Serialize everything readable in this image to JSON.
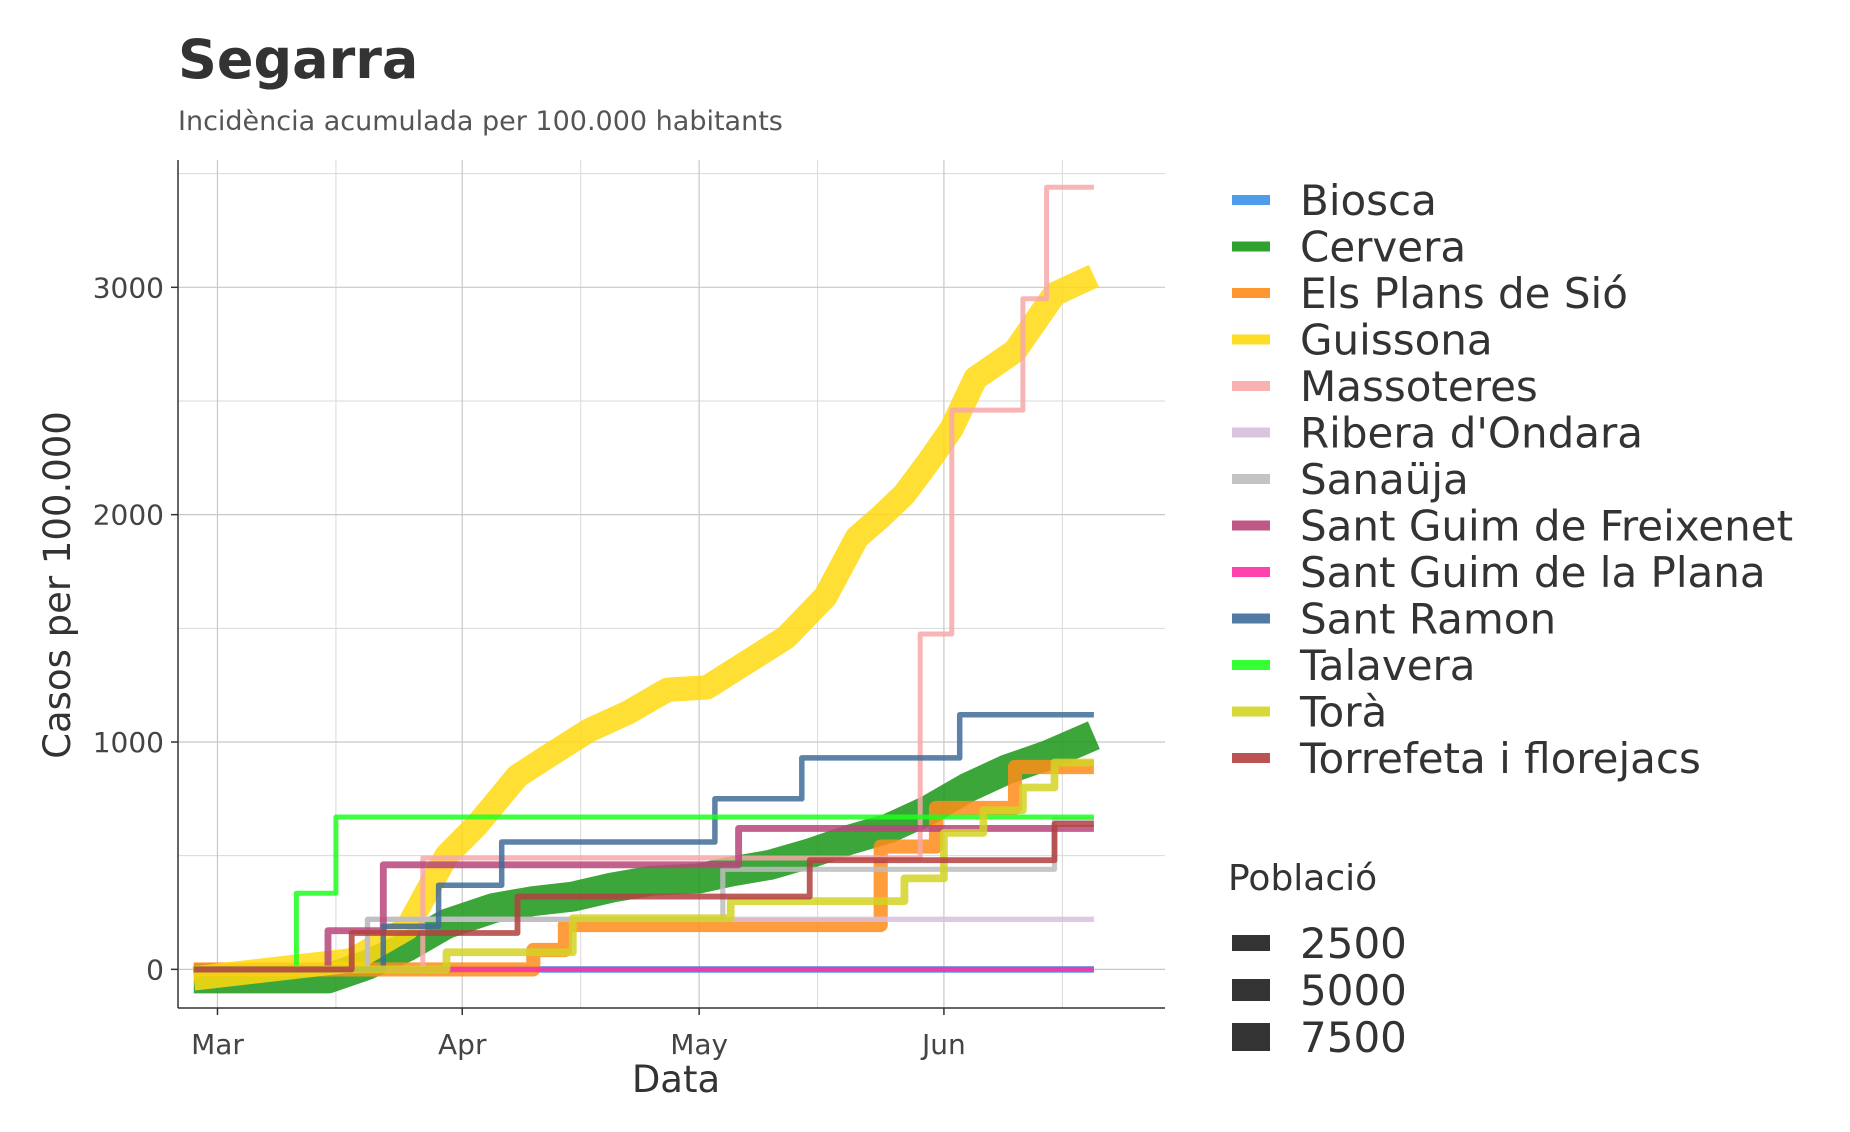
{
  "chart_data": {
    "type": "line",
    "title": "Segarra",
    "subtitle": "Incidència acumulada per 100.000 habitants",
    "xlabel": "Data",
    "ylabel": "Casos per 100.000",
    "x_ticks": [
      "Mar",
      "Apr",
      "May",
      "Jun"
    ],
    "y_ticks": [
      0,
      1000,
      2000,
      3000
    ],
    "xlim": [
      "2020-02-25",
      "2020-06-29"
    ],
    "ylim": [
      -170,
      3560
    ],
    "grid": true,
    "legend_position": "right",
    "size_legend": {
      "title": "Població",
      "values": [
        2500,
        5000,
        7500
      ]
    },
    "series": [
      {
        "name": "Biosca",
        "color": "#3c91e6",
        "population": 900,
        "x": [
          "2020-02-27",
          "2020-06-20"
        ],
        "y": [
          0,
          0
        ]
      },
      {
        "name": "Cervera",
        "color": "#1a9617",
        "population": 9300,
        "x": [
          "2020-02-27",
          "2020-03-15",
          "2020-03-20",
          "2020-03-25",
          "2020-03-30",
          "2020-04-05",
          "2020-04-10",
          "2020-04-15",
          "2020-04-20",
          "2020-04-25",
          "2020-05-01",
          "2020-05-05",
          "2020-05-10",
          "2020-05-15",
          "2020-05-20",
          "2020-05-25",
          "2020-05-30",
          "2020-06-04",
          "2020-06-09",
          "2020-06-14",
          "2020-06-20"
        ],
        "y": [
          -40,
          -40,
          20,
          100,
          200,
          270,
          300,
          320,
          360,
          390,
          400,
          430,
          460,
          510,
          570,
          620,
          700,
          800,
          880,
          940,
          1030
        ]
      },
      {
        "name": "Els Plans de Sió",
        "color": "#ff8c1a",
        "population": 3500,
        "x": [
          "2020-02-27",
          "2020-04-10",
          "2020-04-10",
          "2020-04-14",
          "2020-04-14",
          "2020-05-24",
          "2020-05-24",
          "2020-05-31",
          "2020-05-31",
          "2020-06-10",
          "2020-06-10",
          "2020-06-20"
        ],
        "y": [
          0,
          0,
          85,
          85,
          195,
          195,
          540,
          540,
          710,
          710,
          890,
          890
        ]
      },
      {
        "name": "Guissona",
        "color": "#ffd90f",
        "population": 7000,
        "x": [
          "2020-02-27",
          "2020-03-18",
          "2020-03-25",
          "2020-03-30",
          "2020-04-03",
          "2020-04-08",
          "2020-04-12",
          "2020-04-17",
          "2020-04-22",
          "2020-04-27",
          "2020-05-02",
          "2020-05-07",
          "2020-05-12",
          "2020-05-17",
          "2020-05-21",
          "2020-05-24",
          "2020-05-27",
          "2020-05-30",
          "2020-06-02",
          "2020-06-05",
          "2020-06-10",
          "2020-06-15",
          "2020-06-20"
        ],
        "y": [
          -40,
          40,
          180,
          500,
          640,
          850,
          940,
          1050,
          1130,
          1230,
          1240,
          1350,
          1460,
          1640,
          1900,
          1990,
          2090,
          2230,
          2380,
          2600,
          2720,
          2970,
          3050
        ]
      },
      {
        "name": "Massoteres",
        "color": "#f7a8a8",
        "population": 200,
        "x": [
          "2020-02-27",
          "2020-03-27",
          "2020-03-27",
          "2020-05-29",
          "2020-05-29",
          "2020-06-02",
          "2020-06-02",
          "2020-06-11",
          "2020-06-11",
          "2020-06-14",
          "2020-06-14",
          "2020-06-20"
        ],
        "y": [
          0,
          0,
          490,
          490,
          1475,
          1475,
          2460,
          2460,
          2950,
          2950,
          3440,
          3440
        ]
      },
      {
        "name": "Ribera d'Ondara",
        "color": "#d6bfde",
        "population": 450,
        "x": [
          "2020-02-27",
          "2020-03-20",
          "2020-03-20",
          "2020-06-20"
        ],
        "y": [
          0,
          0,
          220,
          220
        ]
      },
      {
        "name": "Sanaüja",
        "color": "#bdbdbd",
        "population": 420,
        "x": [
          "2020-02-27",
          "2020-03-20",
          "2020-03-20",
          "2020-05-04",
          "2020-05-04",
          "2020-06-15",
          "2020-06-15",
          "2020-06-20"
        ],
        "y": [
          0,
          0,
          220,
          220,
          440,
          440,
          660,
          660
        ]
      },
      {
        "name": "Sant Guim de Freixenet",
        "color": "#b8457a",
        "population": 1000,
        "x": [
          "2020-02-27",
          "2020-03-15",
          "2020-03-15",
          "2020-03-22",
          "2020-03-22",
          "2020-05-06",
          "2020-05-06",
          "2020-06-20"
        ],
        "y": [
          0,
          0,
          170,
          170,
          460,
          460,
          620,
          620
        ]
      },
      {
        "name": "Sant Guim de la Plana",
        "color": "#ff2ea6",
        "population": 200,
        "x": [
          "2020-02-27",
          "2020-06-20"
        ],
        "y": [
          0,
          0
        ]
      },
      {
        "name": "Sant Ramon",
        "color": "#3f6c98",
        "population": 520,
        "x": [
          "2020-02-27",
          "2020-03-22",
          "2020-03-22",
          "2020-03-29",
          "2020-03-29",
          "2020-04-06",
          "2020-04-06",
          "2020-05-03",
          "2020-05-03",
          "2020-05-14",
          "2020-05-14",
          "2020-06-03",
          "2020-06-03",
          "2020-06-20"
        ],
        "y": [
          0,
          0,
          190,
          190,
          370,
          370,
          560,
          560,
          750,
          750,
          930,
          930,
          1120,
          1120
        ]
      },
      {
        "name": "Talavera",
        "color": "#1fff1f",
        "population": 300,
        "x": [
          "2020-02-27",
          "2020-03-11",
          "2020-03-11",
          "2020-03-16",
          "2020-03-16",
          "2020-06-20"
        ],
        "y": [
          0,
          0,
          335,
          335,
          670,
          670
        ]
      },
      {
        "name": "Torà",
        "color": "#d4d426",
        "population": 1300,
        "x": [
          "2020-02-27",
          "2020-03-30",
          "2020-03-30",
          "2020-04-15",
          "2020-04-15",
          "2020-05-05",
          "2020-05-05",
          "2020-05-27",
          "2020-05-27",
          "2020-06-01",
          "2020-06-01",
          "2020-06-06",
          "2020-06-06",
          "2020-06-11",
          "2020-06-11",
          "2020-06-15",
          "2020-06-15",
          "2020-06-20"
        ],
        "y": [
          0,
          0,
          75,
          75,
          225,
          225,
          300,
          300,
          400,
          400,
          600,
          600,
          700,
          700,
          800,
          800,
          910,
          910
        ]
      },
      {
        "name": "Torrefeta i florejacs",
        "color": "#b34040",
        "population": 630,
        "x": [
          "2020-02-27",
          "2020-03-18",
          "2020-03-18",
          "2020-03-26",
          "2020-03-26",
          "2020-04-08",
          "2020-04-08",
          "2020-05-15",
          "2020-05-15",
          "2020-06-15",
          "2020-06-15",
          "2020-06-20"
        ],
        "y": [
          0,
          0,
          160,
          160,
          160,
          160,
          320,
          320,
          480,
          480,
          640,
          640
        ]
      }
    ]
  }
}
